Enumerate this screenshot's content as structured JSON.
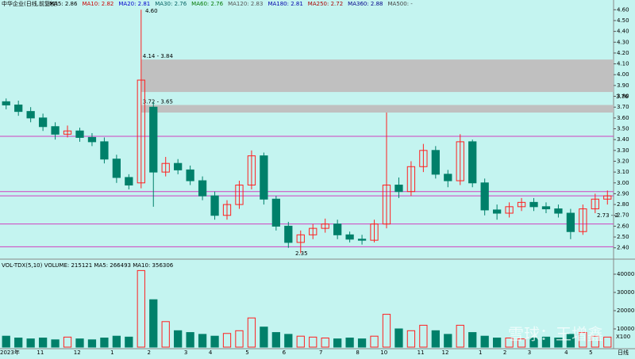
{
  "chart_data": {
    "type": "candlestick",
    "title": "中华企业(日线,前复权)",
    "ma_labels": [
      {
        "text": "MA5: 2.86",
        "color": "#000000"
      },
      {
        "text": "MA10: 2.82",
        "color": "#cc0000"
      },
      {
        "text": "MA20: 2.81",
        "color": "#0000cc"
      },
      {
        "text": "MA30: 2.76",
        "color": "#006060"
      },
      {
        "text": "MA60: 2.76",
        "color": "#007700"
      },
      {
        "text": "MA120: 2.83",
        "color": "#555555"
      },
      {
        "text": "MA180: 2.81",
        "color": "#0000aa"
      },
      {
        "text": "MA250: 2.72",
        "color": "#aa0000"
      },
      {
        "text": "MA360: 2.88",
        "color": "#000088"
      },
      {
        "text": "MA500: -",
        "color": "#444444"
      }
    ],
    "categories": [
      "2023年",
      null,
      null,
      "11",
      null,
      null,
      "12",
      null,
      null,
      "1",
      null,
      null,
      "2",
      null,
      null,
      "3",
      null,
      "4",
      null,
      null,
      "5",
      null,
      null,
      "6",
      null,
      null,
      "7",
      null,
      null,
      "8",
      null,
      "10",
      null,
      null,
      "11",
      null,
      "12",
      null,
      null,
      "1",
      null,
      "2",
      null,
      "3",
      null,
      null,
      "4",
      null,
      "5",
      null
    ],
    "open": [
      3.75,
      3.72,
      3.66,
      3.6,
      3.52,
      3.45,
      3.48,
      3.42,
      3.38,
      3.22,
      3.05,
      3.0,
      3.7,
      3.1,
      3.18,
      3.12,
      3.02,
      2.88,
      2.7,
      2.8,
      2.98,
      3.25,
      2.85,
      2.6,
      2.45,
      2.52,
      2.58,
      2.62,
      2.52,
      2.48,
      2.47,
      2.62,
      2.98,
      2.92,
      3.15,
      3.3,
      3.08,
      3.02,
      3.38,
      3.0,
      2.75,
      2.72,
      2.78,
      2.82,
      2.78,
      2.76,
      2.72,
      2.55,
      2.76,
      2.85
    ],
    "high": [
      3.78,
      3.76,
      3.7,
      3.64,
      3.56,
      3.53,
      3.51,
      3.46,
      3.42,
      3.26,
      3.08,
      4.6,
      3.75,
      3.24,
      3.22,
      3.16,
      3.06,
      2.92,
      2.84,
      3.02,
      3.3,
      3.28,
      2.88,
      2.64,
      2.56,
      2.62,
      2.67,
      2.66,
      2.55,
      2.52,
      2.66,
      3.65,
      3.05,
      3.2,
      3.36,
      3.34,
      3.12,
      3.45,
      3.4,
      3.04,
      2.8,
      2.82,
      2.86,
      2.86,
      2.82,
      2.8,
      2.76,
      2.8,
      2.9,
      2.93
    ],
    "low": [
      3.68,
      3.62,
      3.56,
      3.48,
      3.4,
      3.42,
      3.38,
      3.34,
      3.18,
      3.0,
      2.94,
      2.95,
      2.78,
      3.06,
      3.08,
      2.98,
      2.84,
      2.66,
      2.66,
      2.76,
      2.94,
      2.8,
      2.56,
      2.4,
      2.35,
      2.48,
      2.54,
      2.48,
      2.45,
      2.43,
      2.45,
      2.58,
      2.86,
      2.88,
      3.1,
      3.04,
      2.96,
      2.98,
      2.96,
      2.7,
      2.66,
      2.68,
      2.74,
      2.74,
      2.72,
      2.68,
      2.48,
      2.52,
      2.72,
      2.8
    ],
    "close": [
      3.72,
      3.66,
      3.6,
      3.52,
      3.45,
      3.48,
      3.42,
      3.38,
      3.22,
      3.05,
      2.98,
      3.95,
      3.1,
      3.18,
      3.12,
      3.02,
      2.88,
      2.7,
      2.8,
      2.98,
      3.25,
      2.85,
      2.6,
      2.45,
      2.52,
      2.58,
      2.62,
      2.52,
      2.48,
      2.47,
      2.62,
      2.98,
      2.92,
      3.15,
      3.3,
      3.08,
      3.02,
      3.38,
      3.0,
      2.75,
      2.72,
      2.78,
      2.82,
      2.78,
      2.76,
      2.72,
      2.55,
      2.76,
      2.85,
      2.88
    ],
    "up_color": "#ff2020",
    "down_color": "#00806a",
    "ylim": [
      2.31,
      4.69
    ],
    "yticks": [
      {
        "value": 2.4,
        "label": "2.40"
      },
      {
        "value": 2.5,
        "label": "2.50"
      },
      {
        "value": 2.6,
        "label": "2.60"
      },
      {
        "value": 2.7,
        "label": "2.70"
      },
      {
        "value": 2.8,
        "label": "2.80"
      },
      {
        "value": 2.9,
        "label": "2.90"
      },
      {
        "value": 3.0,
        "label": "3.00"
      },
      {
        "value": 3.1,
        "label": "3.10"
      },
      {
        "value": 3.2,
        "label": "3.20"
      },
      {
        "value": 3.3,
        "label": "3.30"
      },
      {
        "value": 3.4,
        "label": "3.40"
      },
      {
        "value": 3.5,
        "label": "3.50"
      },
      {
        "value": 3.6,
        "label": "3.60"
      },
      {
        "value": 3.7,
        "label": "3.70"
      },
      {
        "value": 3.8,
        "label": "3.80"
      },
      {
        "value": 3.9,
        "label": "3.90"
      },
      {
        "value": 4.0,
        "label": "4.00"
      },
      {
        "value": 4.1,
        "label": "4.10"
      },
      {
        "value": 4.2,
        "label": "4.20"
      },
      {
        "value": 4.3,
        "label": "4.30"
      },
      {
        "value": 4.4,
        "label": "4.40"
      },
      {
        "value": 4.5,
        "label": "4.50"
      },
      {
        "value": 4.6,
        "label": "4.60"
      }
    ],
    "levels": [
      3.43,
      2.92,
      2.88,
      2.62,
      2.41
    ],
    "level_color": "#d040c0",
    "zones": [
      {
        "from": 3.84,
        "to": 4.14,
        "label": "4.14 - 3.84"
      },
      {
        "from": 3.65,
        "to": 3.72,
        "label": "3.72 - 3.65"
      }
    ],
    "zone_color": "#c0c0c0",
    "annotations": [
      "4.60",
      "2.35",
      "2.73 - 2",
      "3.76"
    ],
    "volume_title": "VOL-TDX(5,10) VOLUME: 215121 MA5: 266493 MA10: 356306",
    "volume": [
      6000,
      5000,
      4500,
      5000,
      4000,
      5500,
      4500,
      4000,
      5000,
      6000,
      5500,
      42000,
      26000,
      14000,
      9000,
      8000,
      7000,
      6000,
      7500,
      9000,
      16000,
      11000,
      8000,
      7000,
      6000,
      5500,
      5000,
      4500,
      5000,
      4500,
      6000,
      18000,
      10000,
      9000,
      12000,
      9000,
      7000,
      12000,
      8000,
      6000,
      5000,
      5000,
      4500,
      5000,
      5500,
      5000,
      7000,
      8000,
      6000,
      5500
    ],
    "vol_ylim": [
      0,
      42600
    ],
    "vol_yticks": [
      10000,
      20000,
      30000,
      40000
    ],
    "vol_unit": "X100",
    "period": "日线",
    "watermark": "雪球：王增鑫"
  }
}
